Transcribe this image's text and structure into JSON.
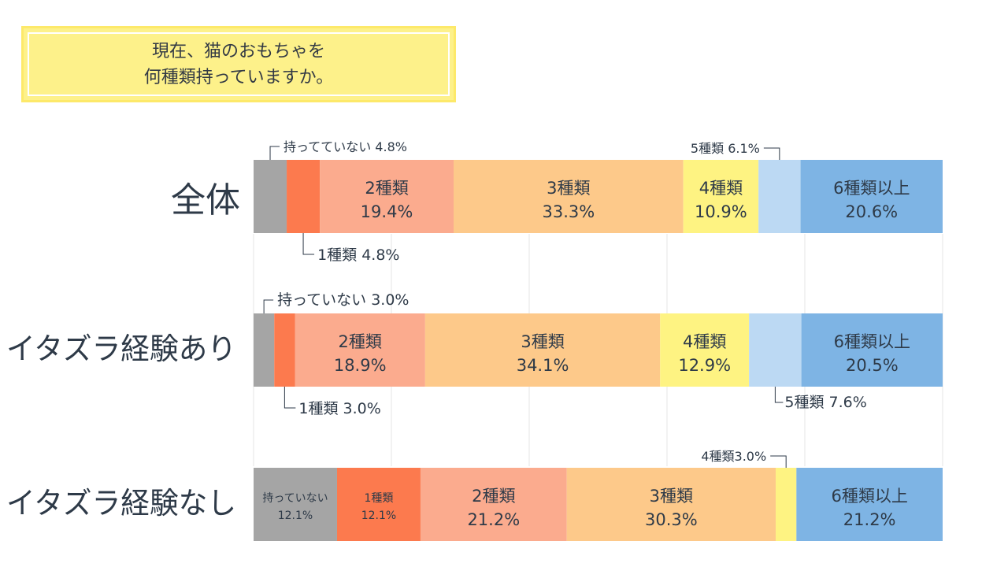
{
  "title": {
    "line1": "現在、猫のおもちゃを",
    "line2": "何種類持っていますか。"
  },
  "colors": {
    "none": "#a5a5a5",
    "one": "#fc7a4e",
    "two": "#fbab8e",
    "three": "#fdc98a",
    "four": "#fef382",
    "five": "#bcd9f3",
    "six": "#7eb4e4",
    "title_bg": "#fdf18a"
  },
  "chart_data": {
    "type": "bar",
    "stacked": true,
    "orientation": "horizontal",
    "unit": "%",
    "grid": true,
    "categories": [
      "全体",
      "イタズラ経験あり",
      "イタズラ経験なし"
    ],
    "series": [
      {
        "name": "持っていない",
        "values": [
          4.8,
          3.0,
          12.1
        ]
      },
      {
        "name": "1種類",
        "values": [
          4.8,
          3.0,
          12.1
        ]
      },
      {
        "name": "2種類",
        "values": [
          19.4,
          18.9,
          21.2
        ]
      },
      {
        "name": "3種類",
        "values": [
          33.3,
          34.1,
          30.3
        ]
      },
      {
        "name": "4種類",
        "values": [
          10.9,
          12.9,
          3.0
        ]
      },
      {
        "name": "5種類",
        "values": [
          6.1,
          7.6,
          0
        ]
      },
      {
        "name": "6種類以上",
        "values": [
          20.6,
          20.5,
          21.2
        ]
      }
    ],
    "labels": [
      [
        {
          "type": "callout",
          "text": "持ってていない 4.8%"
        },
        {
          "type": "callout",
          "text": "1種類 4.8%"
        },
        {
          "type": "inside",
          "line1": "2種類",
          "line2": "19.4%"
        },
        {
          "type": "inside",
          "line1": "3種類",
          "line2": "33.3%"
        },
        {
          "type": "inside",
          "line1": "4種類",
          "line2": "10.9%"
        },
        {
          "type": "callout",
          "text": "5種類 6.1%"
        },
        {
          "type": "inside",
          "line1": "6種類以上",
          "line2": "20.6%"
        }
      ],
      [
        {
          "type": "callout",
          "text": "持っていない 3.0%"
        },
        {
          "type": "callout",
          "text": "1種類 3.0%"
        },
        {
          "type": "inside",
          "line1": "2種類",
          "line2": "18.9%"
        },
        {
          "type": "inside",
          "line1": "3種類",
          "line2": "34.1%"
        },
        {
          "type": "inside",
          "line1": "4種類",
          "line2": "12.9%"
        },
        {
          "type": "callout",
          "text": "5種類 7.6%"
        },
        {
          "type": "inside",
          "line1": "6種類以上",
          "line2": "20.5%"
        }
      ],
      [
        {
          "type": "inside_small",
          "line1": "持っていない",
          "line2": "12.1%"
        },
        {
          "type": "inside_small",
          "line1": "1種類",
          "line2": "12.1%"
        },
        {
          "type": "inside",
          "line1": "2種類",
          "line2": "21.2%"
        },
        {
          "type": "inside",
          "line1": "3種類",
          "line2": "30.3%"
        },
        {
          "type": "callout",
          "text": "4種類3.0%"
        },
        null,
        {
          "type": "inside",
          "line1": "6種類以上",
          "line2": "21.2%"
        }
      ]
    ]
  }
}
